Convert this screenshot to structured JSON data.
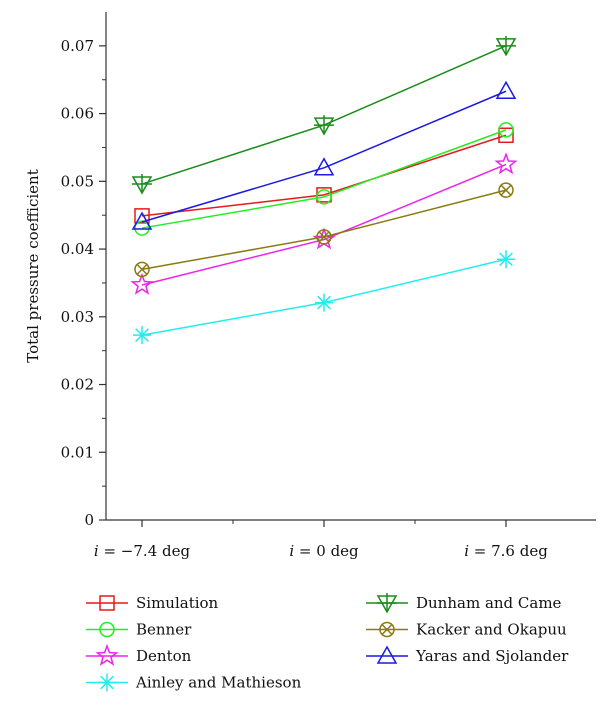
{
  "chart_data": {
    "type": "line",
    "ylabel": "Total pressure coefficient",
    "xlabel": "",
    "categories": [
      "i = −7.4 deg",
      "i = 0 deg",
      "i = 7.6 deg"
    ],
    "category_parts": [
      {
        "italic": "i",
        "rest": " = −7.4 deg"
      },
      {
        "italic": "i",
        "rest": " = 0 deg"
      },
      {
        "italic": "i",
        "rest": " = 7.6 deg"
      }
    ],
    "ylim": [
      0,
      0.075
    ],
    "yticks": [
      0,
      0.01,
      0.02,
      0.03,
      0.04,
      0.05,
      0.06,
      0.07
    ],
    "ytick_labels": [
      "0",
      "0.01",
      "0.02",
      "0.03",
      "0.04",
      "0.05",
      "0.06",
      "0.07"
    ],
    "grid": false,
    "legend_position": "bottom",
    "series": [
      {
        "name": "Simulation",
        "values": [
          0.0449,
          0.048,
          0.0568
        ],
        "color": "#e41a1c",
        "marker": "square"
      },
      {
        "name": "Benner",
        "values": [
          0.0431,
          0.0477,
          0.0576
        ],
        "color": "#22ee22",
        "marker": "circle"
      },
      {
        "name": "Denton",
        "values": [
          0.0347,
          0.0414,
          0.0525
        ],
        "color": "#ee22ee",
        "marker": "star"
      },
      {
        "name": "Ainley and Mathieson",
        "values": [
          0.0273,
          0.0321,
          0.0385
        ],
        "color": "#22eeee",
        "marker": "asterisk"
      },
      {
        "name": "Dunham and Came",
        "values": [
          0.0496,
          0.0583,
          0.07
        ],
        "color": "#1a8c1a",
        "marker": "triangle-down-cross"
      },
      {
        "name": "Kacker and Okapuu",
        "values": [
          0.037,
          0.0418,
          0.0487
        ],
        "color": "#8a7a10",
        "marker": "circle-x"
      },
      {
        "name": "Yaras and Sjolander",
        "values": [
          0.044,
          0.052,
          0.0633
        ],
        "color": "#1a1ae6",
        "marker": "triangle-up"
      }
    ]
  }
}
